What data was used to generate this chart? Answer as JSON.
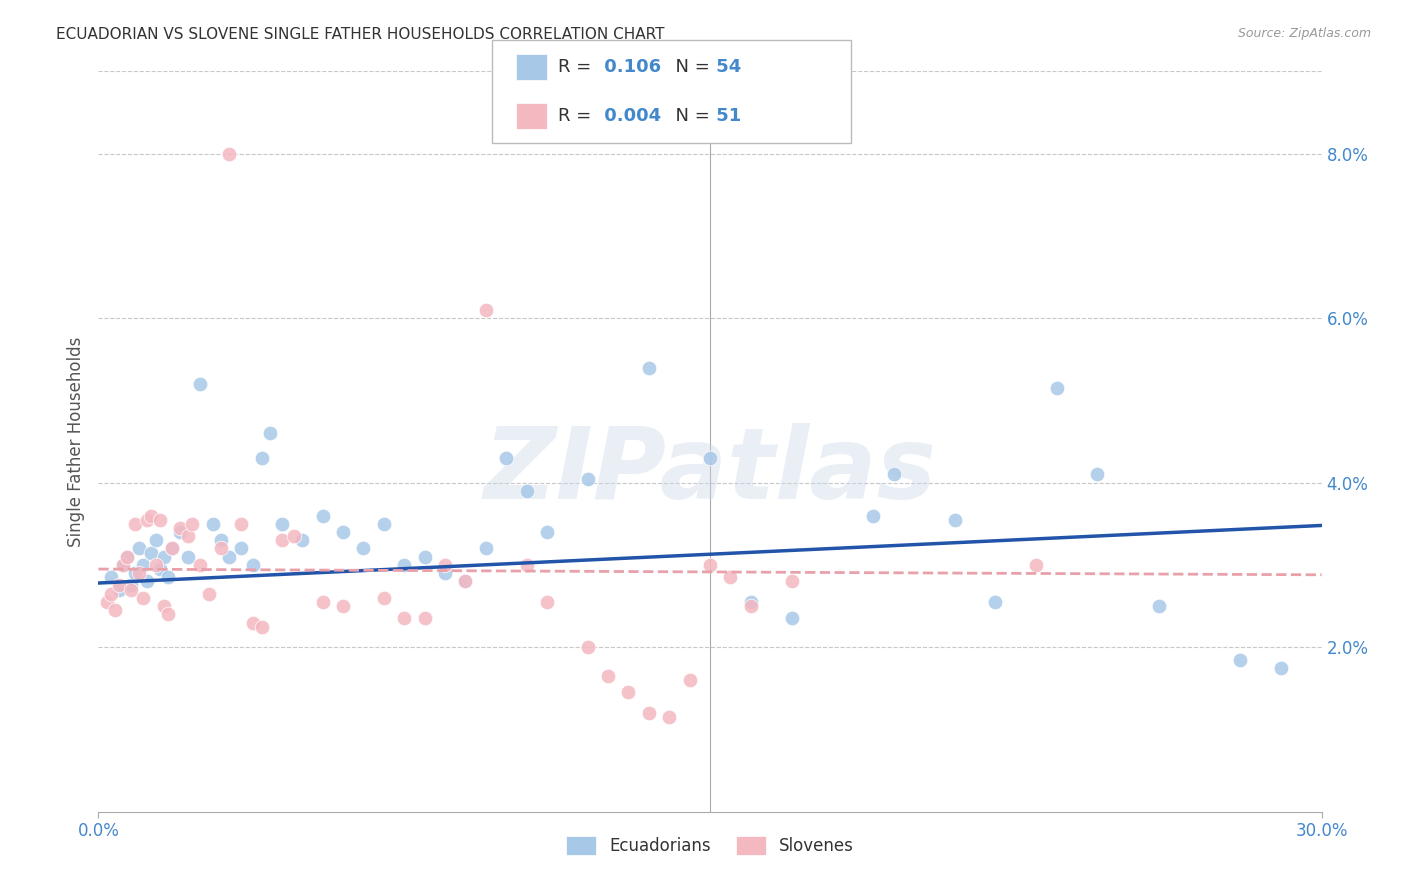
{
  "title": "ECUADORIAN VS SLOVENE SINGLE FATHER HOUSEHOLDS CORRELATION CHART",
  "source": "Source: ZipAtlas.com",
  "ylabel": "Single Father Households",
  "xlim": [
    0.0,
    30.0
  ],
  "ylim": [
    0.0,
    9.0
  ],
  "yticks": [
    2.0,
    4.0,
    6.0,
    8.0
  ],
  "xticks": [
    0.0,
    30.0
  ],
  "background_color": "#ffffff",
  "grid_color": "#c8c8c8",
  "watermark_text": "ZIPatlas",
  "blue_color": "#a8c8e8",
  "pink_color": "#f4b8c0",
  "blue_line_color": "#2255aa",
  "pink_line_color": "#e8a0aa",
  "tick_color": "#4488cc",
  "blue_scatter": [
    [
      0.3,
      2.85
    ],
    [
      0.5,
      2.7
    ],
    [
      0.6,
      3.0
    ],
    [
      0.7,
      3.1
    ],
    [
      0.8,
      2.75
    ],
    [
      0.9,
      2.9
    ],
    [
      1.0,
      3.2
    ],
    [
      1.1,
      3.0
    ],
    [
      1.2,
      2.8
    ],
    [
      1.3,
      3.15
    ],
    [
      1.4,
      3.3
    ],
    [
      1.5,
      2.95
    ],
    [
      1.6,
      3.1
    ],
    [
      1.7,
      2.85
    ],
    [
      1.8,
      3.2
    ],
    [
      2.0,
      3.4
    ],
    [
      2.2,
      3.1
    ],
    [
      2.5,
      5.2
    ],
    [
      2.8,
      3.5
    ],
    [
      3.0,
      3.3
    ],
    [
      3.2,
      3.1
    ],
    [
      3.5,
      3.2
    ],
    [
      3.8,
      3.0
    ],
    [
      4.0,
      4.3
    ],
    [
      4.2,
      4.6
    ],
    [
      4.5,
      3.5
    ],
    [
      5.0,
      3.3
    ],
    [
      5.5,
      3.6
    ],
    [
      6.0,
      3.4
    ],
    [
      6.5,
      3.2
    ],
    [
      7.0,
      3.5
    ],
    [
      7.5,
      3.0
    ],
    [
      8.0,
      3.1
    ],
    [
      8.5,
      2.9
    ],
    [
      9.0,
      2.8
    ],
    [
      9.5,
      3.2
    ],
    [
      10.0,
      4.3
    ],
    [
      10.5,
      3.9
    ],
    [
      11.0,
      3.4
    ],
    [
      12.0,
      4.05
    ],
    [
      13.5,
      5.4
    ],
    [
      15.0,
      4.3
    ],
    [
      16.0,
      2.55
    ],
    [
      17.0,
      2.35
    ],
    [
      19.0,
      3.6
    ],
    [
      19.5,
      4.1
    ],
    [
      21.0,
      3.55
    ],
    [
      22.0,
      2.55
    ],
    [
      23.5,
      5.15
    ],
    [
      24.5,
      4.1
    ],
    [
      26.0,
      2.5
    ],
    [
      28.0,
      1.85
    ],
    [
      29.0,
      1.75
    ]
  ],
  "pink_scatter": [
    [
      0.2,
      2.55
    ],
    [
      0.3,
      2.65
    ],
    [
      0.4,
      2.45
    ],
    [
      0.5,
      2.75
    ],
    [
      0.6,
      3.0
    ],
    [
      0.7,
      3.1
    ],
    [
      0.8,
      2.7
    ],
    [
      0.9,
      3.5
    ],
    [
      1.0,
      2.9
    ],
    [
      1.1,
      2.6
    ],
    [
      1.2,
      3.55
    ],
    [
      1.3,
      3.6
    ],
    [
      1.4,
      3.0
    ],
    [
      1.5,
      3.55
    ],
    [
      1.6,
      2.5
    ],
    [
      1.7,
      2.4
    ],
    [
      1.8,
      3.2
    ],
    [
      2.0,
      3.45
    ],
    [
      2.2,
      3.35
    ],
    [
      2.3,
      3.5
    ],
    [
      2.5,
      3.0
    ],
    [
      2.7,
      2.65
    ],
    [
      3.0,
      3.2
    ],
    [
      3.2,
      8.0
    ],
    [
      3.5,
      3.5
    ],
    [
      3.8,
      2.3
    ],
    [
      4.0,
      2.25
    ],
    [
      4.5,
      3.3
    ],
    [
      4.8,
      3.35
    ],
    [
      5.5,
      2.55
    ],
    [
      6.0,
      2.5
    ],
    [
      7.0,
      2.6
    ],
    [
      7.5,
      2.35
    ],
    [
      8.0,
      2.35
    ],
    [
      8.5,
      3.0
    ],
    [
      9.0,
      2.8
    ],
    [
      9.5,
      6.1
    ],
    [
      10.5,
      3.0
    ],
    [
      11.0,
      2.55
    ],
    [
      12.0,
      2.0
    ],
    [
      12.5,
      1.65
    ],
    [
      13.0,
      1.45
    ],
    [
      13.5,
      1.2
    ],
    [
      14.0,
      1.15
    ],
    [
      14.5,
      1.6
    ],
    [
      15.0,
      3.0
    ],
    [
      15.5,
      2.85
    ],
    [
      16.0,
      2.5
    ],
    [
      17.0,
      2.8
    ],
    [
      23.0,
      3.0
    ]
  ],
  "blue_trendline_x": [
    0.0,
    30.0
  ],
  "blue_trendline_y": [
    2.78,
    3.48
  ],
  "pink_trendline_x": [
    0.0,
    30.0
  ],
  "pink_trendline_y": [
    2.95,
    2.88
  ]
}
